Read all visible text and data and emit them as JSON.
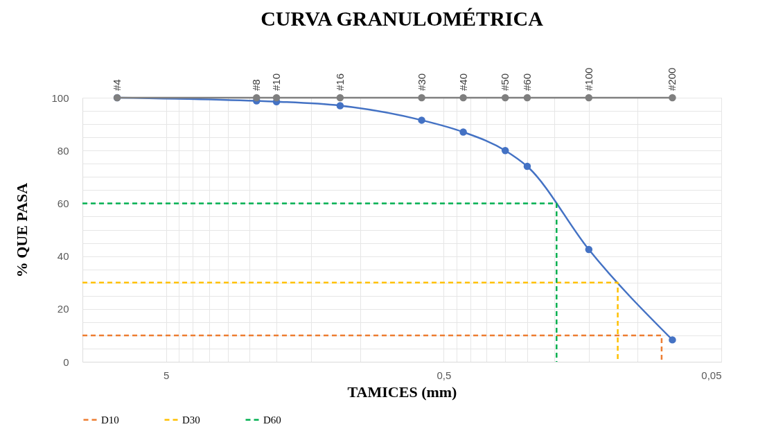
{
  "chart_data": {
    "type": "line",
    "title": "CURVA GRANULOMÉTRICA",
    "xlabel": "TAMICES (mm)",
    "ylabel": "% QUE PASA",
    "log": "x",
    "grid": true,
    "legend": "bottom",
    "xlim": [
      10,
      0.05
    ],
    "ylim": [
      0,
      100
    ],
    "xticks": [
      5,
      {
        "value": 4.5,
        "label": null
      },
      {
        "value": 4,
        "label": null
      },
      {
        "value": 3.5,
        "label": null
      },
      {
        "value": 3,
        "label": null
      },
      {
        "value": 2.5,
        "label": null
      },
      {
        "value": 2,
        "label": null
      },
      {
        "value": 1.5,
        "label": null
      },
      {
        "value": 1,
        "label": null
      },
      {
        "value": 0.5,
        "label": "0,5"
      },
      {
        "value": 0.45,
        "label": null
      },
      {
        "value": 0.4,
        "label": null
      },
      {
        "value": 0.35,
        "label": null
      },
      {
        "value": 0.3,
        "label": null
      },
      {
        "value": 0.25,
        "label": null
      },
      {
        "value": 0.2,
        "label": null
      },
      {
        "value": 0.15,
        "label": null
      },
      {
        "value": 0.1,
        "label": null
      },
      {
        "value": 0.05,
        "label": "0,05"
      }
    ],
    "yticks": [
      0,
      {
        "value": 5,
        "label": null
      },
      {
        "value": 10,
        "label": null
      },
      {
        "value": 15,
        "label": null
      },
      20,
      {
        "value": 25,
        "label": null
      },
      {
        "value": 30,
        "label": null
      },
      {
        "value": 35,
        "label": null
      },
      40,
      {
        "value": 45,
        "label": null
      },
      {
        "value": 50,
        "label": null
      },
      {
        "value": 55,
        "label": null
      },
      60,
      {
        "value": 65,
        "label": null
      },
      {
        "value": 70,
        "label": null
      },
      {
        "value": 75,
        "label": null
      },
      80,
      {
        "value": 85,
        "label": null
      },
      {
        "value": 90,
        "label": null
      },
      {
        "value": 95,
        "label": null
      },
      100
    ],
    "series": [
      {
        "color": "#4472c4",
        "marker": "circle",
        "line_style": "solid",
        "x": [
          7.5,
          2.36,
          2.0,
          1.18,
          0.6,
          0.425,
          0.3,
          0.25,
          0.15,
          0.075
        ],
        "values": [
          100,
          98.8,
          98.5,
          97,
          91.5,
          87,
          80,
          74,
          42.5,
          8.3
        ]
      },
      {
        "color": "#7f7f7f",
        "marker": "circle",
        "line_style": "solid",
        "x": [
          7.5,
          2.36,
          2.0,
          1.18,
          0.6,
          0.425,
          0.3,
          0.25,
          0.15,
          0.075
        ],
        "values": [
          100,
          100,
          100,
          100,
          100,
          100,
          100,
          100,
          100,
          100
        ]
      },
      {
        "name": "D10",
        "color": "#ed7d31",
        "marker": "none",
        "line_style": "dashed",
        "x": [
          10,
          0.082,
          0.082
        ],
        "values": [
          10,
          10,
          0
        ]
      },
      {
        "name": "D30",
        "color": "#ffc000",
        "marker": "none",
        "line_style": "dashed",
        "x": [
          10,
          0.118,
          0.118
        ],
        "values": [
          30,
          30,
          0
        ]
      },
      {
        "name": "D60",
        "color": "#00b050",
        "marker": "none",
        "line_style": "dashed",
        "x": [
          10,
          0.196,
          0.196
        ],
        "values": [
          60,
          60,
          0
        ]
      }
    ],
    "annotations": [
      {
        "text": "#4",
        "x": 7.5,
        "y": 100
      },
      {
        "text": "#8",
        "x": 2.36,
        "y": 100
      },
      {
        "text": "#10",
        "x": 2.0,
        "y": 100
      },
      {
        "text": "#16",
        "x": 1.18,
        "y": 100
      },
      {
        "text": "#30",
        "x": 0.6,
        "y": 100
      },
      {
        "text": "#40",
        "x": 0.425,
        "y": 100
      },
      {
        "text": "#50",
        "x": 0.3,
        "y": 100
      },
      {
        "text": "#60",
        "x": 0.25,
        "y": 100
      },
      {
        "text": "#100",
        "x": 0.15,
        "y": 100
      },
      {
        "text": "#200",
        "x": 0.075,
        "y": 100
      }
    ]
  }
}
